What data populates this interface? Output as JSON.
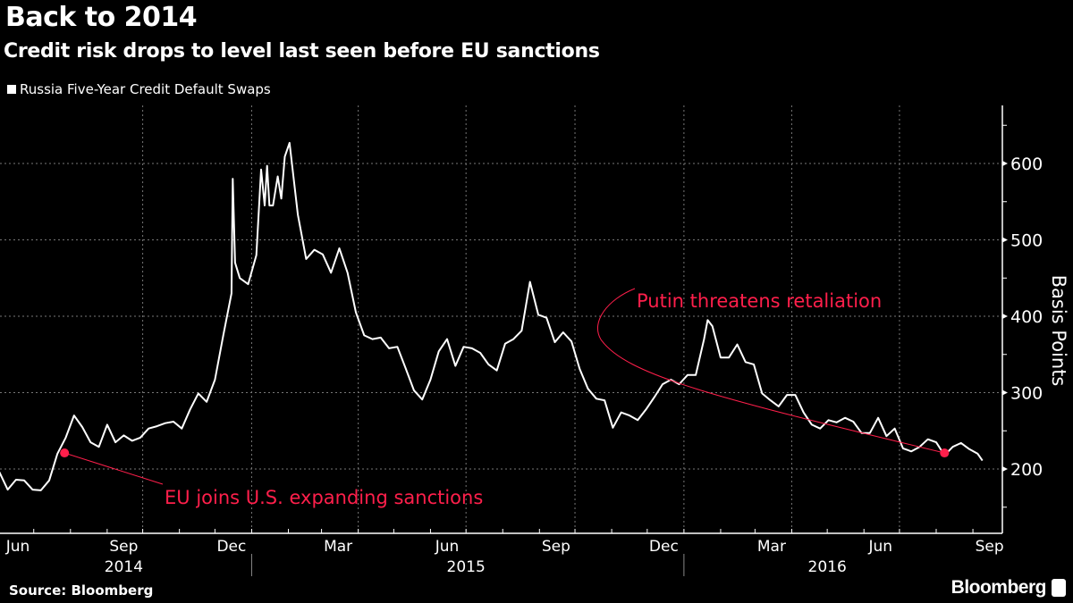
{
  "header": {
    "title": "Back to 2014",
    "subtitle": "Credit risk drops to level last seen before EU sanctions"
  },
  "footer": {
    "source": "Source: Bloomberg",
    "brand": "Bloomberg"
  },
  "colors": {
    "background": "#000000",
    "line": "#ffffff",
    "annotation": "#ff1f4b",
    "grid": "#777777"
  },
  "chart_data": {
    "type": "line",
    "title": "Back to 2014",
    "subtitle": "Credit risk drops to level last seen before EU sanctions",
    "ylabel": "Basis Points",
    "y_axis_side": "right",
    "ylim": [
      115,
      675
    ],
    "yticks": [
      200,
      300,
      400,
      500,
      600
    ],
    "xlim": [
      "2014-06-01",
      "2016-09-20"
    ],
    "xtick_labels": [
      {
        "label": "Jun",
        "date": "2014-06-15"
      },
      {
        "label": "Sep",
        "date": "2014-09-15"
      },
      {
        "label": "Dec",
        "date": "2014-12-15"
      },
      {
        "label": "Mar",
        "date": "2015-03-15"
      },
      {
        "label": "Jun",
        "date": "2015-06-15"
      },
      {
        "label": "Sep",
        "date": "2015-09-15"
      },
      {
        "label": "Dec",
        "date": "2015-12-15"
      },
      {
        "label": "Mar",
        "date": "2016-03-15"
      },
      {
        "label": "Jun",
        "date": "2016-06-15"
      },
      {
        "label": "Sep",
        "date": "2016-09-15"
      }
    ],
    "year_labels": [
      {
        "label": "2014",
        "date": "2014-09-15"
      },
      {
        "label": "2015",
        "date": "2015-07-01"
      },
      {
        "label": "2016",
        "date": "2016-05-01"
      }
    ],
    "grid": true,
    "legend_position": "top-left",
    "series": [
      {
        "name": "Russia Five-Year Credit Default Swaps",
        "color": "#ffffff",
        "points": [
          [
            "2014-06-02",
            196
          ],
          [
            "2014-06-09",
            173
          ],
          [
            "2014-06-16",
            186
          ],
          [
            "2014-06-23",
            185
          ],
          [
            "2014-06-30",
            173
          ],
          [
            "2014-07-07",
            172
          ],
          [
            "2014-07-14",
            185
          ],
          [
            "2014-07-21",
            220
          ],
          [
            "2014-07-28",
            241
          ],
          [
            "2014-08-04",
            270
          ],
          [
            "2014-08-11",
            255
          ],
          [
            "2014-08-18",
            235
          ],
          [
            "2014-08-25",
            229
          ],
          [
            "2014-09-01",
            258
          ],
          [
            "2014-09-08",
            235
          ],
          [
            "2014-09-15",
            244
          ],
          [
            "2014-09-22",
            237
          ],
          [
            "2014-09-29",
            241
          ],
          [
            "2014-10-06",
            253
          ],
          [
            "2014-10-13",
            256
          ],
          [
            "2014-10-20",
            260
          ],
          [
            "2014-10-27",
            262
          ],
          [
            "2014-11-03",
            253
          ],
          [
            "2014-11-10",
            278
          ],
          [
            "2014-11-17",
            299
          ],
          [
            "2014-11-24",
            288
          ],
          [
            "2014-12-01",
            317
          ],
          [
            "2014-12-08",
            375
          ],
          [
            "2014-12-15",
            430
          ],
          [
            "2014-12-16",
            580
          ],
          [
            "2014-12-18",
            470
          ],
          [
            "2014-12-22",
            450
          ],
          [
            "2014-12-29",
            442
          ],
          [
            "2015-01-05",
            480
          ],
          [
            "2015-01-09",
            592
          ],
          [
            "2015-01-12",
            545
          ],
          [
            "2015-01-14",
            597
          ],
          [
            "2015-01-16",
            545
          ],
          [
            "2015-01-19",
            545
          ],
          [
            "2015-01-23",
            583
          ],
          [
            "2015-01-26",
            554
          ],
          [
            "2015-01-29",
            609
          ],
          [
            "2015-02-02",
            627
          ],
          [
            "2015-02-09",
            533
          ],
          [
            "2015-02-16",
            475
          ],
          [
            "2015-02-23",
            487
          ],
          [
            "2015-03-02",
            481
          ],
          [
            "2015-03-09",
            457
          ],
          [
            "2015-03-16",
            489
          ],
          [
            "2015-03-23",
            457
          ],
          [
            "2015-03-30",
            405
          ],
          [
            "2015-04-06",
            375
          ],
          [
            "2015-04-13",
            370
          ],
          [
            "2015-04-20",
            372
          ],
          [
            "2015-04-27",
            358
          ],
          [
            "2015-05-04",
            360
          ],
          [
            "2015-05-11",
            332
          ],
          [
            "2015-05-18",
            303
          ],
          [
            "2015-05-25",
            291
          ],
          [
            "2015-06-01",
            317
          ],
          [
            "2015-06-08",
            354
          ],
          [
            "2015-06-15",
            370
          ],
          [
            "2015-06-22",
            335
          ],
          [
            "2015-06-29",
            360
          ],
          [
            "2015-07-06",
            358
          ],
          [
            "2015-07-13",
            352
          ],
          [
            "2015-07-20",
            337
          ],
          [
            "2015-07-27",
            329
          ],
          [
            "2015-08-03",
            364
          ],
          [
            "2015-08-10",
            370
          ],
          [
            "2015-08-17",
            381
          ],
          [
            "2015-08-24",
            445
          ],
          [
            "2015-08-31",
            402
          ],
          [
            "2015-09-07",
            398
          ],
          [
            "2015-09-14",
            366
          ],
          [
            "2015-09-21",
            379
          ],
          [
            "2015-09-28",
            367
          ],
          [
            "2015-10-05",
            331
          ],
          [
            "2015-10-12",
            305
          ],
          [
            "2015-10-19",
            292
          ],
          [
            "2015-10-26",
            290
          ],
          [
            "2015-11-02",
            254
          ],
          [
            "2015-11-09",
            274
          ],
          [
            "2015-11-16",
            270
          ],
          [
            "2015-11-23",
            264
          ],
          [
            "2015-11-30",
            278
          ],
          [
            "2015-12-07",
            294
          ],
          [
            "2015-12-14",
            311
          ],
          [
            "2015-12-21",
            317
          ],
          [
            "2015-12-28",
            311
          ],
          [
            "2016-01-04",
            323
          ],
          [
            "2016-01-11",
            323
          ],
          [
            "2016-01-18",
            370
          ],
          [
            "2016-01-21",
            395
          ],
          [
            "2016-01-25",
            387
          ],
          [
            "2016-02-01",
            346
          ],
          [
            "2016-02-08",
            346
          ],
          [
            "2016-02-15",
            363
          ],
          [
            "2016-02-22",
            340
          ],
          [
            "2016-02-29",
            337
          ],
          [
            "2016-03-07",
            299
          ],
          [
            "2016-03-14",
            290
          ],
          [
            "2016-03-21",
            282
          ],
          [
            "2016-03-28",
            297
          ],
          [
            "2016-04-04",
            297
          ],
          [
            "2016-04-11",
            274
          ],
          [
            "2016-04-18",
            258
          ],
          [
            "2016-04-25",
            253
          ],
          [
            "2016-05-02",
            264
          ],
          [
            "2016-05-09",
            261
          ],
          [
            "2016-05-16",
            267
          ],
          [
            "2016-05-23",
            262
          ],
          [
            "2016-05-30",
            247
          ],
          [
            "2016-06-06",
            247
          ],
          [
            "2016-06-13",
            267
          ],
          [
            "2016-06-20",
            243
          ],
          [
            "2016-06-27",
            253
          ],
          [
            "2016-07-04",
            227
          ],
          [
            "2016-07-11",
            223
          ],
          [
            "2016-07-18",
            229
          ],
          [
            "2016-07-25",
            239
          ],
          [
            "2016-08-01",
            235
          ],
          [
            "2016-08-08",
            218
          ],
          [
            "2016-08-15",
            229
          ],
          [
            "2016-08-22",
            234
          ],
          [
            "2016-08-29",
            226
          ],
          [
            "2016-09-05",
            220
          ],
          [
            "2016-09-09",
            211
          ]
        ]
      }
    ],
    "annotations": [
      {
        "text": "EU joins U.S. expanding sanctions",
        "date": "2014-07-27",
        "value": 221
      },
      {
        "text": "Putin threatens retaliation",
        "date": "2016-08-08",
        "value": 221
      }
    ]
  }
}
